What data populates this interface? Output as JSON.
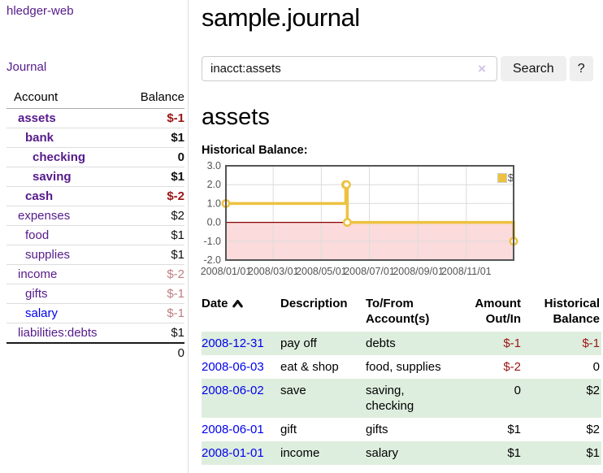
{
  "colors": {
    "link_purple": "#551a8b",
    "link_blue": "#0000ee",
    "negative_red": "#991414",
    "faded_negative": "#bf7e7e",
    "row_stripe_green": "#deeede",
    "button_gray": "#efefef",
    "sidebar_divider": "#dddddd"
  },
  "sidebar": {
    "brand": "hledger-web",
    "nav": [
      {
        "label": "Journal"
      }
    ],
    "accounts_table": {
      "headers": [
        "Account",
        "Balance"
      ],
      "rows": [
        {
          "name": "assets",
          "depth": 1,
          "bold": true,
          "balance": "$-1",
          "tone": "neg"
        },
        {
          "name": "bank",
          "depth": 2,
          "bold": true,
          "balance": "$1",
          "tone": "pos"
        },
        {
          "name": "checking",
          "depth": 3,
          "bold": true,
          "balance": "0",
          "tone": "pos"
        },
        {
          "name": "saving",
          "depth": 3,
          "bold": true,
          "balance": "$1",
          "tone": "pos"
        },
        {
          "name": "cash",
          "depth": 2,
          "bold": true,
          "balance": "$-2",
          "tone": "neg"
        },
        {
          "name": "expenses",
          "depth": 1,
          "bold": false,
          "balance": "$2",
          "tone": "pos"
        },
        {
          "name": "food",
          "depth": 2,
          "bold": false,
          "balance": "$1",
          "tone": "pos"
        },
        {
          "name": "supplies",
          "depth": 2,
          "bold": false,
          "balance": "$1",
          "tone": "pos"
        },
        {
          "name": "income",
          "depth": 1,
          "bold": false,
          "balance": "$-2",
          "tone": "fadedneg"
        },
        {
          "name": "gifts",
          "depth": 2,
          "bold": false,
          "balance": "$-1",
          "tone": "fadedneg"
        },
        {
          "name": "salary",
          "depth": 2,
          "bold": false,
          "balance": "$-1",
          "tone": "fadedneg",
          "link_color": "blue"
        },
        {
          "name": "liabilities:debts",
          "depth": 1,
          "bold": false,
          "balance": "$1",
          "tone": "pos"
        }
      ],
      "total": "0"
    }
  },
  "header": {
    "title": "sample.journal"
  },
  "search": {
    "value": "inacct:assets",
    "clear_icon": "×",
    "button": "Search",
    "help_button": "?"
  },
  "account_page": {
    "heading": "assets",
    "chart_label": "Historical Balance:"
  },
  "chart_data": {
    "type": "line",
    "step": true,
    "title": "Historical Balance of assets",
    "series": [
      {
        "name": "$",
        "color": "#edc240",
        "x": [
          "2008-01-01",
          "2008-06-01",
          "2008-06-02",
          "2008-06-03",
          "2008-12-31"
        ],
        "values": [
          1,
          2,
          2,
          0,
          -1
        ]
      }
    ],
    "xrange": [
      "2008-01-01",
      "2008-12-31"
    ],
    "ylim": [
      -2,
      3
    ],
    "yticks": [
      {
        "v": 3,
        "label": "3.0"
      },
      {
        "v": 2,
        "label": "2.0"
      },
      {
        "v": 1,
        "label": "1.0"
      },
      {
        "v": 0,
        "label": "0.0"
      },
      {
        "v": -1,
        "label": "-1.0"
      },
      {
        "v": -2,
        "label": "-2.0"
      }
    ],
    "xticks": [
      {
        "d": "2008-01-01",
        "label": "2008/01/01"
      },
      {
        "d": "2008-03-01",
        "label": "2008/03/01"
      },
      {
        "d": "2008-05-01",
        "label": "2008/05/01"
      },
      {
        "d": "2008-07-01",
        "label": "2008/07/01"
      },
      {
        "d": "2008-09-01",
        "label": "2008/09/01"
      },
      {
        "d": "2008-11-01",
        "label": "2008/11/01"
      }
    ],
    "grid": true,
    "legend_position": "top-right",
    "chart_colors": {
      "line": "#edc240",
      "marker_fill": "#ffffff",
      "negative_region": "#fbdbdb",
      "zero_line": "#8b0000",
      "gridline": "#dcdcdc",
      "border": "#545454",
      "tick_text": "#545454"
    }
  },
  "register": {
    "headers": [
      "Date",
      "Description",
      "To/From Account(s)",
      "Amount Out/In",
      "Historical Balance"
    ],
    "sort_icon": "chevron-up",
    "rows": [
      {
        "date": "2008-12-31",
        "description": "pay off",
        "accounts": "debts",
        "amount": "$-1",
        "amount_tone": "neg",
        "balance": "$-1",
        "balance_tone": "neg"
      },
      {
        "date": "2008-06-03",
        "description": "eat & shop",
        "accounts": "food, supplies",
        "amount": "$-2",
        "amount_tone": "neg",
        "balance": "0",
        "balance_tone": "pos"
      },
      {
        "date": "2008-06-02",
        "description": "save",
        "accounts": "saving, checking",
        "amount": "0",
        "amount_tone": "pos",
        "balance": "$2",
        "balance_tone": "pos"
      },
      {
        "date": "2008-06-01",
        "description": "gift",
        "accounts": "gifts",
        "amount": "$1",
        "amount_tone": "pos",
        "balance": "$2",
        "balance_tone": "pos"
      },
      {
        "date": "2008-01-01",
        "description": "income",
        "accounts": "salary",
        "amount": "$1",
        "amount_tone": "pos",
        "balance": "$1",
        "balance_tone": "pos"
      }
    ]
  }
}
